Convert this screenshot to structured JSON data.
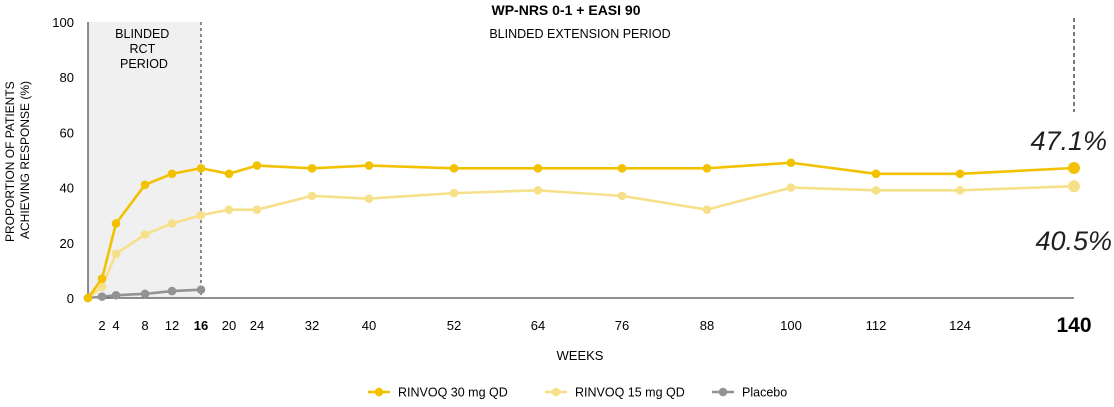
{
  "chart_data": {
    "type": "line",
    "title": "WP-NRS 0-1 + EASI 90",
    "xlabel": "WEEKS",
    "ylabel": "PROPORTION OF PATIENTS ACHIEVING RESPONSE (%)",
    "ylabel_lines": [
      "PROPORTION OF PATIENTS",
      "ACHIEVING RESPONSE (%)"
    ],
    "ylim": [
      0,
      100
    ],
    "yticks": [
      0,
      20,
      40,
      60,
      80,
      100
    ],
    "xticks": [
      2,
      4,
      8,
      12,
      16,
      20,
      24,
      32,
      40,
      52,
      64,
      76,
      88,
      100,
      112,
      124,
      140
    ],
    "x_axis_scale": "nonlinear",
    "emphasized_xticks": [
      16,
      140
    ],
    "grid": false,
    "legend_position": "bottom",
    "periods": [
      {
        "label_lines": [
          "BLINDED",
          "RCT",
          "PERIOD"
        ],
        "start": 0,
        "end": 16,
        "shaded": true
      },
      {
        "label_lines": [
          "BLINDED EXTENSION PERIOD"
        ],
        "start": 16,
        "end": 140,
        "shaded": false
      }
    ],
    "end_labels": [
      "47.1%",
      "40.5%"
    ],
    "series": [
      {
        "name": "RINVOQ 30 mg QD",
        "color": "#f2c200",
        "x": [
          0,
          2,
          4,
          8,
          12,
          16,
          20,
          24,
          32,
          40,
          52,
          64,
          76,
          88,
          100,
          112,
          124,
          140
        ],
        "y": [
          0,
          7,
          27,
          41,
          45,
          47,
          45,
          48,
          47,
          48,
          47,
          47,
          47,
          47,
          49,
          45,
          45,
          47.1
        ]
      },
      {
        "name": "RINVOQ 15 mg QD",
        "color": "#f7e08a",
        "x": [
          0,
          2,
          4,
          8,
          12,
          16,
          20,
          24,
          32,
          40,
          52,
          64,
          76,
          88,
          100,
          112,
          124,
          140
        ],
        "y": [
          0,
          4,
          16,
          23,
          27,
          30,
          32,
          32,
          37,
          36,
          38,
          39,
          37,
          32,
          40,
          39,
          39,
          40.5
        ]
      },
      {
        "name": "Placebo",
        "color": "#939393",
        "x": [
          0,
          2,
          4,
          8,
          12,
          16
        ],
        "y": [
          0,
          0.5,
          1,
          1.5,
          2.5,
          3
        ]
      }
    ]
  }
}
